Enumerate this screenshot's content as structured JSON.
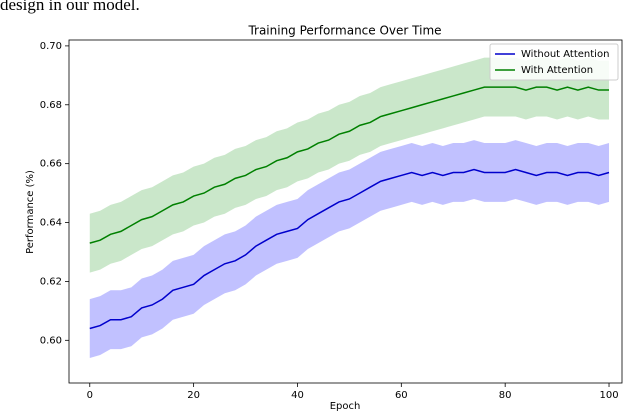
{
  "caption": "design in our model.",
  "chart_data": {
    "type": "line",
    "title": "Training Performance Over Time",
    "xlabel": "Epoch",
    "ylabel": "Performance (%)",
    "x": [
      0,
      2,
      4,
      6,
      8,
      10,
      12,
      14,
      16,
      18,
      20,
      22,
      24,
      26,
      28,
      30,
      32,
      34,
      36,
      38,
      40,
      42,
      44,
      46,
      48,
      50,
      52,
      54,
      56,
      58,
      60,
      62,
      64,
      66,
      68,
      70,
      72,
      74,
      76,
      78,
      80,
      82,
      84,
      86,
      88,
      90,
      92,
      94,
      96,
      98,
      100
    ],
    "series": [
      {
        "name": "Without Attention",
        "color": "#0000cc",
        "band_color": "#4d4dff",
        "spread": 0.01,
        "values": [
          0.604,
          0.605,
          0.607,
          0.607,
          0.608,
          0.611,
          0.612,
          0.614,
          0.617,
          0.618,
          0.619,
          0.622,
          0.624,
          0.626,
          0.627,
          0.629,
          0.632,
          0.634,
          0.636,
          0.637,
          0.638,
          0.641,
          0.643,
          0.645,
          0.647,
          0.648,
          0.65,
          0.652,
          0.654,
          0.655,
          0.656,
          0.657,
          0.656,
          0.657,
          0.656,
          0.657,
          0.657,
          0.658,
          0.657,
          0.657,
          0.657,
          0.658,
          0.657,
          0.656,
          0.657,
          0.657,
          0.656,
          0.657,
          0.657,
          0.656,
          0.657
        ]
      },
      {
        "name": "With Attention",
        "color": "#008000",
        "band_color": "#2ca02c",
        "spread": 0.01,
        "values": [
          0.633,
          0.634,
          0.636,
          0.637,
          0.639,
          0.641,
          0.642,
          0.644,
          0.646,
          0.647,
          0.649,
          0.65,
          0.652,
          0.653,
          0.655,
          0.656,
          0.658,
          0.659,
          0.661,
          0.662,
          0.664,
          0.665,
          0.667,
          0.668,
          0.67,
          0.671,
          0.673,
          0.674,
          0.676,
          0.677,
          0.678,
          0.679,
          0.68,
          0.681,
          0.682,
          0.683,
          0.684,
          0.685,
          0.686,
          0.686,
          0.686,
          0.686,
          0.685,
          0.686,
          0.686,
          0.685,
          0.686,
          0.685,
          0.686,
          0.685,
          0.685
        ]
      }
    ],
    "xlim": [
      -4,
      102.5
    ],
    "ylim": [
      0.5855,
      0.702
    ],
    "xticks": [
      0,
      20,
      40,
      60,
      80,
      100
    ],
    "yticks": [
      {
        "value": 0.6,
        "label": "0.60"
      },
      {
        "value": 0.62,
        "label": "0.62"
      },
      {
        "value": 0.64,
        "label": "0.64"
      },
      {
        "value": 0.66,
        "label": "0.66"
      },
      {
        "value": 0.68,
        "label": "0.68"
      },
      {
        "value": 0.7,
        "label": "0.70"
      }
    ],
    "legend": "upper right"
  }
}
